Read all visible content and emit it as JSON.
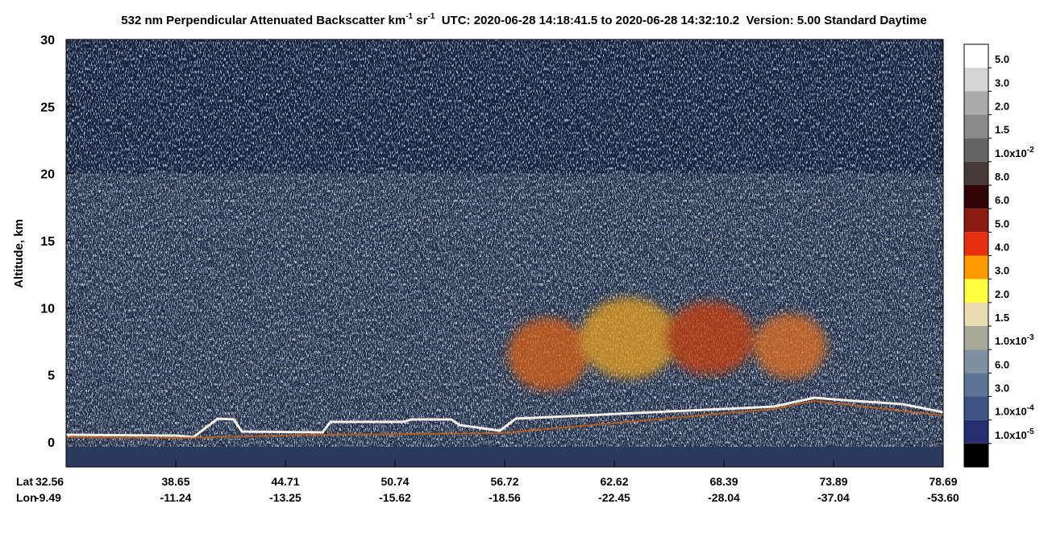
{
  "chart_data": {
    "type": "curtain",
    "title": [
      "532 nm Perpendicular Attenuated Backscatter km",
      "-1",
      " sr",
      "-1",
      "  UTC: 2020-06-28 14:18:41.5 to 2020-06-28 14:32:10.2  Version: 5.00 Standard Daytime"
    ],
    "ylabel": "Altitude, km",
    "ylim": [
      -1.86,
      30
    ],
    "yticks": [
      0,
      5,
      10,
      15,
      20,
      25,
      30
    ],
    "x_row_labels": [
      "Lat",
      "Lon"
    ],
    "lat": [
      "32.56",
      "38.65",
      "44.71",
      "50.74",
      "56.72",
      "62.62",
      "68.39",
      "73.89",
      "78.69"
    ],
    "lon": [
      "-9.49",
      "-11.24",
      "-13.25",
      "-15.62",
      "-18.56",
      "-22.45",
      "-28.04",
      "-37.04",
      "-53.60"
    ],
    "colorbar_colors": [
      "#ffffff",
      "#d4d4d4",
      "#ababab",
      "#8a8a8a",
      "#646464",
      "#463a36",
      "#300404",
      "#8a1a12",
      "#e83010",
      "#ff9a00",
      "#ffff40",
      "#e8dcb0",
      "#a8a898",
      "#8090a0",
      "#5e7494",
      "#3e5284",
      "#262e72",
      "#000000"
    ],
    "colorbar_labels": [
      {
        "text": "5.0"
      },
      {
        "text": "3.0"
      },
      {
        "text": "2.0"
      },
      {
        "text": "1.5"
      },
      {
        "text": "1.0x10",
        "sup": "-2"
      },
      {
        "text": "8.0"
      },
      {
        "text": "6.0"
      },
      {
        "text": "5.0"
      },
      {
        "text": "4.0"
      },
      {
        "text": "3.0"
      },
      {
        "text": "2.0"
      },
      {
        "text": "1.5"
      },
      {
        "text": "1.0x10",
        "sup": "-3"
      },
      {
        "text": "6.0"
      },
      {
        "text": "3.0"
      },
      {
        "text": "1.0x10",
        "sup": "-4"
      },
      {
        "text": "1.0x10",
        "sup": "-5"
      }
    ]
  }
}
